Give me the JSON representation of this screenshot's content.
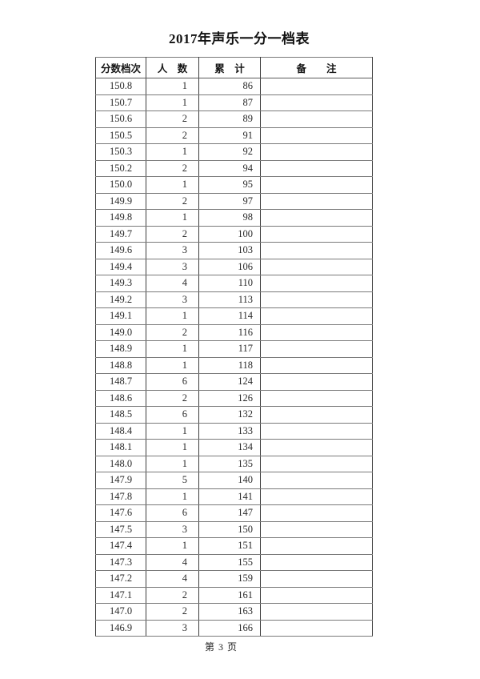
{
  "page": {
    "title": "2017年声乐一分一档表",
    "footer": "第 3 页"
  },
  "colors": {
    "background": "#ffffff",
    "text": "#2a2a2a",
    "border_outer": "#3d3d3d",
    "border_row": "#7a7a7a"
  },
  "table": {
    "headers": [
      "分数档次",
      "人　数",
      "累　计",
      "备　　注"
    ],
    "header_names": [
      "score-level",
      "count",
      "cumulative",
      "remark"
    ],
    "rows": [
      [
        "150.8",
        "1",
        "86",
        ""
      ],
      [
        "150.7",
        "1",
        "87",
        ""
      ],
      [
        "150.6",
        "2",
        "89",
        ""
      ],
      [
        "150.5",
        "2",
        "91",
        ""
      ],
      [
        "150.3",
        "1",
        "92",
        ""
      ],
      [
        "150.2",
        "2",
        "94",
        ""
      ],
      [
        "150.0",
        "1",
        "95",
        ""
      ],
      [
        "149.9",
        "2",
        "97",
        ""
      ],
      [
        "149.8",
        "1",
        "98",
        ""
      ],
      [
        "149.7",
        "2",
        "100",
        ""
      ],
      [
        "149.6",
        "3",
        "103",
        ""
      ],
      [
        "149.4",
        "3",
        "106",
        ""
      ],
      [
        "149.3",
        "4",
        "110",
        ""
      ],
      [
        "149.2",
        "3",
        "113",
        ""
      ],
      [
        "149.1",
        "1",
        "114",
        ""
      ],
      [
        "149.0",
        "2",
        "116",
        ""
      ],
      [
        "148.9",
        "1",
        "117",
        ""
      ],
      [
        "148.8",
        "1",
        "118",
        ""
      ],
      [
        "148.7",
        "6",
        "124",
        ""
      ],
      [
        "148.6",
        "2",
        "126",
        ""
      ],
      [
        "148.5",
        "6",
        "132",
        ""
      ],
      [
        "148.4",
        "1",
        "133",
        ""
      ],
      [
        "148.1",
        "1",
        "134",
        ""
      ],
      [
        "148.0",
        "1",
        "135",
        ""
      ],
      [
        "147.9",
        "5",
        "140",
        ""
      ],
      [
        "147.8",
        "1",
        "141",
        ""
      ],
      [
        "147.6",
        "6",
        "147",
        ""
      ],
      [
        "147.5",
        "3",
        "150",
        ""
      ],
      [
        "147.4",
        "1",
        "151",
        ""
      ],
      [
        "147.3",
        "4",
        "155",
        ""
      ],
      [
        "147.2",
        "4",
        "159",
        ""
      ],
      [
        "147.1",
        "2",
        "161",
        ""
      ],
      [
        "147.0",
        "2",
        "163",
        ""
      ],
      [
        "146.9",
        "3",
        "166",
        ""
      ]
    ]
  }
}
